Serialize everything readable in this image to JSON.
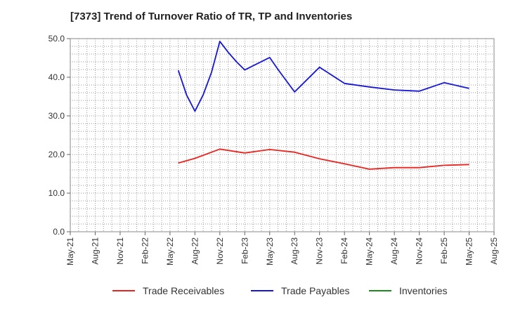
{
  "chart_data": {
    "type": "line",
    "title": "[7373]  Trend of Turnover Ratio of TR, TP and Inventories",
    "xlabel": "",
    "ylabel": "",
    "ylim": [
      0,
      50
    ],
    "yticks": [
      "0.0",
      "10.0",
      "20.0",
      "30.0",
      "40.0",
      "50.0"
    ],
    "x_categories": [
      "May-21",
      "Aug-21",
      "Nov-21",
      "Feb-22",
      "May-22",
      "Aug-22",
      "Nov-22",
      "Feb-23",
      "May-23",
      "Aug-23",
      "Nov-23",
      "Feb-24",
      "May-24",
      "Aug-24",
      "Nov-24",
      "Feb-25",
      "May-25",
      "Aug-25"
    ],
    "grid": true,
    "legend_position": "bottom",
    "series": [
      {
        "name": "Trade Receivables",
        "color": "#e8251f",
        "points": [
          {
            "x": "Jun-22",
            "y": 17.8
          },
          {
            "x": "Aug-22",
            "y": 19.0
          },
          {
            "x": "Nov-22",
            "y": 21.4
          },
          {
            "x": "Feb-23",
            "y": 20.4
          },
          {
            "x": "May-23",
            "y": 21.3
          },
          {
            "x": "Aug-23",
            "y": 20.6
          },
          {
            "x": "Nov-23",
            "y": 18.9
          },
          {
            "x": "Feb-24",
            "y": 17.6
          },
          {
            "x": "May-24",
            "y": 16.2
          },
          {
            "x": "Aug-24",
            "y": 16.6
          },
          {
            "x": "Nov-24",
            "y": 16.6
          },
          {
            "x": "Feb-25",
            "y": 17.2
          },
          {
            "x": "May-25",
            "y": 17.4
          }
        ]
      },
      {
        "name": "Trade Payables",
        "color": "#1616d8",
        "points": [
          {
            "x": "Jun-22",
            "y": 41.8
          },
          {
            "x": "Jul-22",
            "y": 35.4
          },
          {
            "x": "Aug-22",
            "y": 31.2
          },
          {
            "x": "Sep-22",
            "y": 35.5
          },
          {
            "x": "Oct-22",
            "y": 41.3
          },
          {
            "x": "Nov-22",
            "y": 49.3
          },
          {
            "x": "Dec-22",
            "y": 46.5
          },
          {
            "x": "Jan-23",
            "y": 44.0
          },
          {
            "x": "Feb-23",
            "y": 41.9
          },
          {
            "x": "May-23",
            "y": 45.1
          },
          {
            "x": "Jun-23",
            "y": 42.0
          },
          {
            "x": "Aug-23",
            "y": 36.2
          },
          {
            "x": "Nov-23",
            "y": 42.6
          },
          {
            "x": "Feb-24",
            "y": 38.4
          },
          {
            "x": "May-24",
            "y": 37.5
          },
          {
            "x": "Aug-24",
            "y": 36.7
          },
          {
            "x": "Nov-24",
            "y": 36.4
          },
          {
            "x": "Feb-25",
            "y": 38.6
          },
          {
            "x": "May-25",
            "y": 37.1
          }
        ]
      },
      {
        "name": "Inventories",
        "color": "#1a8c1a",
        "points": []
      }
    ]
  }
}
